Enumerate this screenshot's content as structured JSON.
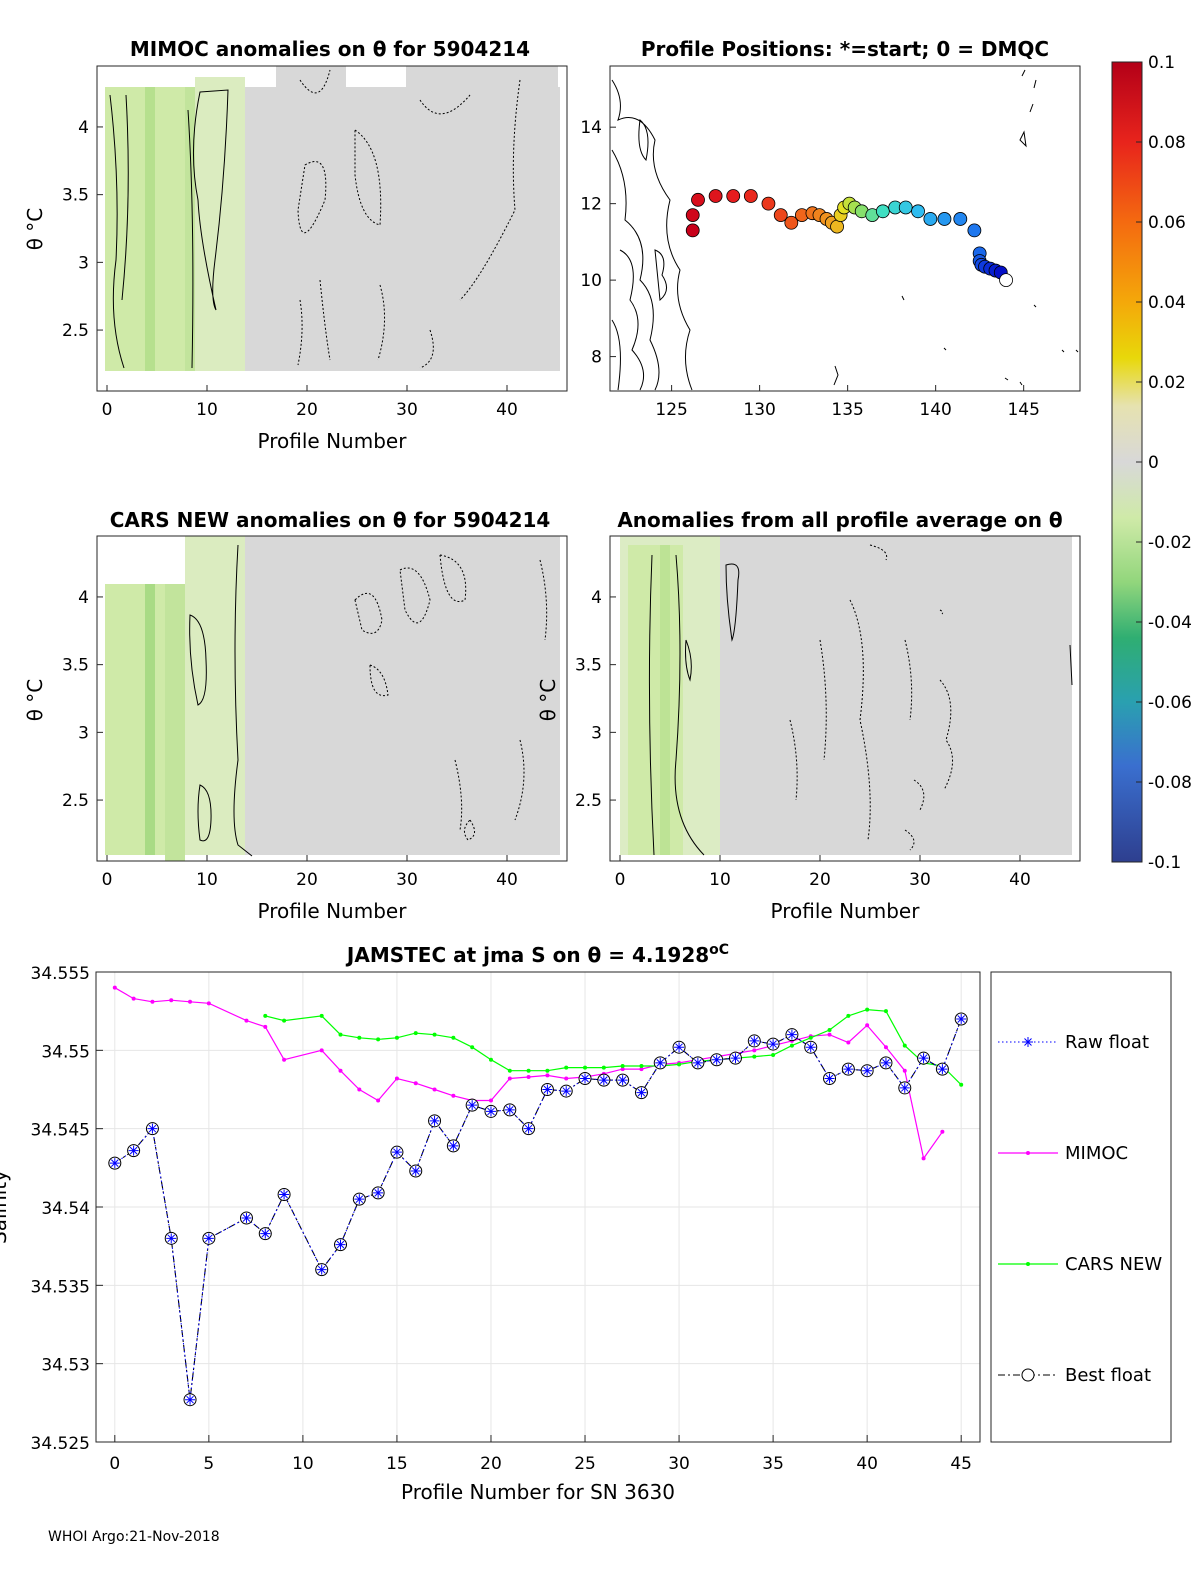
{
  "figure": {
    "footer": "WHOI Argo:21-Nov-2018",
    "colors": {
      "grid_bg": "#d8d8d8",
      "ocean_light": "#cfeaa8",
      "ocean_mid": "#b6e08e",
      "ocean_dark": "#9fd47a",
      "axis": "#262626"
    }
  },
  "panel_mimoc": {
    "title": "MIMOC anomalies on θ  for 5904214",
    "ylabel": "θ °C",
    "xlabel": "Profile Number",
    "xticks": [
      "0",
      "10",
      "20",
      "30",
      "40"
    ],
    "yticks": [
      "2.5",
      "3",
      "3.5",
      "4"
    ]
  },
  "panel_positions": {
    "title": "Profile Positions: *=start; 0 = DMQC",
    "xticks": [
      "125",
      "130",
      "135",
      "140",
      "145"
    ],
    "yticks": [
      "8",
      "10",
      "12",
      "14"
    ],
    "track": {
      "lon": [
        126.2,
        126.2,
        126.5,
        127.5,
        128.5,
        129.5,
        130.5,
        131.2,
        131.8,
        132.4,
        133.0,
        133.4,
        133.8,
        134.1,
        134.4,
        134.6,
        134.8,
        135.1,
        135.4,
        135.8,
        136.4,
        137.0,
        137.7,
        138.3,
        139.0,
        139.7,
        140.5,
        141.4,
        142.2,
        142.5,
        142.5,
        142.6,
        142.8,
        143.1,
        143.4,
        143.7,
        144.0
      ],
      "lat": [
        11.3,
        11.7,
        12.1,
        12.2,
        12.2,
        12.2,
        12.0,
        11.7,
        11.5,
        11.7,
        11.75,
        11.7,
        11.6,
        11.5,
        11.4,
        11.7,
        11.9,
        12.0,
        11.9,
        11.8,
        11.7,
        11.8,
        11.9,
        11.9,
        11.8,
        11.6,
        11.6,
        11.6,
        11.3,
        10.7,
        10.5,
        10.4,
        10.35,
        10.3,
        10.25,
        10.2,
        10.0
      ]
    }
  },
  "panel_cars": {
    "title": "CARS NEW anomalies on θ for 5904214",
    "ylabel": "θ °C",
    "xlabel": "Profile Number",
    "xticks": [
      "0",
      "10",
      "20",
      "30",
      "40"
    ],
    "yticks": [
      "2.5",
      "3",
      "3.5",
      "4"
    ]
  },
  "panel_allavg": {
    "title": "Anomalies from all profile average on θ",
    "ylabel": "θ °C",
    "xlabel": "Profile Number",
    "xticks": [
      "0",
      "10",
      "20",
      "30",
      "40"
    ],
    "yticks": [
      "2.5",
      "3",
      "3.5",
      "4"
    ]
  },
  "colorbar": {
    "ticks": [
      "0.1",
      "0.08",
      "0.06",
      "0.04",
      "0.02",
      "0",
      "-0.02",
      "-0.04",
      "-0.06",
      "-0.08",
      "-0.1"
    ]
  },
  "chart_data": {
    "type": "line",
    "title": "JAMSTEC at jma S on θ = 4.1928",
    "title_unit": "oC",
    "xlabel": "Profile Number for SN 3630",
    "ylabel": "Salinity",
    "xlim": [
      -1,
      46
    ],
    "ylim": [
      34.525,
      34.555
    ],
    "xticks": [
      0,
      5,
      10,
      15,
      20,
      25,
      30,
      35,
      40,
      45
    ],
    "yticks": [
      34.525,
      34.53,
      34.535,
      34.54,
      34.545,
      34.55,
      34.555
    ],
    "xtick_labels": [
      "0",
      "5",
      "10",
      "15",
      "20",
      "25",
      "30",
      "35",
      "40",
      "45"
    ],
    "ytick_labels": [
      "34.525",
      "34.53",
      "34.535",
      "34.54",
      "34.545",
      "34.55",
      "34.555"
    ],
    "legend": [
      "Raw float",
      "MIMOC",
      "CARS NEW",
      "Best float"
    ],
    "series": [
      {
        "name": "Raw float",
        "color": "#0000ff",
        "x": [
          0,
          1,
          2,
          3,
          4,
          5,
          7,
          8,
          9,
          11,
          12,
          13,
          14,
          15,
          16,
          17,
          18,
          19,
          20,
          21,
          22,
          23,
          24,
          25,
          26,
          27,
          28,
          29,
          30,
          31,
          32,
          33,
          34,
          35,
          36,
          37,
          38,
          39,
          40,
          41,
          42,
          43,
          44,
          45
        ],
        "y": [
          34.5428,
          34.5436,
          34.545,
          34.538,
          34.5277,
          34.538,
          34.5393,
          34.5383,
          34.5408,
          34.536,
          34.5376,
          34.5405,
          34.5409,
          34.5435,
          34.5423,
          34.5455,
          34.5439,
          34.5465,
          34.5461,
          34.5462,
          34.545,
          34.5475,
          34.5474,
          34.5482,
          34.5481,
          34.5481,
          34.5473,
          34.5492,
          34.5502,
          34.5492,
          34.5494,
          34.5495,
          34.5506,
          34.5504,
          34.551,
          34.5502,
          34.5482,
          34.5488,
          34.5487,
          34.5492,
          34.5476,
          34.5495,
          34.5488,
          34.552
        ]
      },
      {
        "name": "MIMOC",
        "color": "#ff00ff",
        "x": [
          0,
          1,
          2,
          3,
          4,
          5,
          7,
          8,
          9,
          11,
          12,
          13,
          14,
          15,
          16,
          17,
          18,
          19,
          20,
          21,
          22,
          23,
          24,
          25,
          26,
          27,
          28,
          29,
          30,
          31,
          32,
          33,
          34,
          35,
          36,
          37,
          38,
          39,
          40,
          41,
          42,
          43,
          44
        ],
        "y": [
          34.554,
          34.5533,
          34.5531,
          34.5532,
          34.5531,
          34.553,
          34.5519,
          34.5515,
          34.5494,
          34.55,
          34.5487,
          34.5475,
          34.5468,
          34.5482,
          34.5479,
          34.5475,
          34.5471,
          34.5468,
          34.5468,
          34.5482,
          34.5483,
          34.5484,
          34.5482,
          34.5483,
          34.5485,
          34.5488,
          34.5488,
          34.5491,
          34.5492,
          34.5494,
          34.5496,
          34.5498,
          34.55,
          34.5503,
          34.5506,
          34.5509,
          34.551,
          34.5505,
          34.5516,
          34.5502,
          34.5487,
          34.5431,
          34.5448
        ]
      },
      {
        "name": "CARS NEW",
        "color": "#00ff00",
        "x": [
          8,
          9,
          11,
          12,
          13,
          14,
          15,
          16,
          17,
          18,
          19,
          20,
          21,
          22,
          23,
          24,
          25,
          26,
          27,
          28,
          29,
          30,
          31,
          32,
          33,
          34,
          35,
          36,
          37,
          38,
          39,
          40,
          41,
          42,
          43,
          44,
          45
        ],
        "y": [
          34.5522,
          34.5519,
          34.5522,
          34.551,
          34.5508,
          34.5507,
          34.5508,
          34.5511,
          34.551,
          34.5508,
          34.5502,
          34.5494,
          34.5487,
          34.5487,
          34.5487,
          34.5489,
          34.5489,
          34.5489,
          34.549,
          34.549,
          34.549,
          34.5491,
          34.5493,
          34.5494,
          34.5495,
          34.5496,
          34.5497,
          34.5503,
          34.5508,
          34.5513,
          34.5522,
          34.5526,
          34.5525,
          34.5503,
          34.5492,
          34.549,
          34.5478
        ]
      },
      {
        "name": "Best float",
        "color": "#000000",
        "x": [
          0,
          1,
          2,
          3,
          4,
          5,
          7,
          8,
          9,
          11,
          12,
          13,
          14,
          15,
          16,
          17,
          18,
          19,
          20,
          21,
          22,
          23,
          24,
          25,
          26,
          27,
          28,
          29,
          30,
          31,
          32,
          33,
          34,
          35,
          36,
          37,
          38,
          39,
          40,
          41,
          42,
          43,
          44,
          45
        ],
        "y": [
          34.5428,
          34.5436,
          34.545,
          34.538,
          34.5277,
          34.538,
          34.5393,
          34.5383,
          34.5408,
          34.536,
          34.5376,
          34.5405,
          34.5409,
          34.5435,
          34.5423,
          34.5455,
          34.5439,
          34.5465,
          34.5461,
          34.5462,
          34.545,
          34.5475,
          34.5474,
          34.5482,
          34.5481,
          34.5481,
          34.5473,
          34.5492,
          34.5502,
          34.5492,
          34.5494,
          34.5495,
          34.5506,
          34.5504,
          34.551,
          34.5502,
          34.5482,
          34.5488,
          34.5487,
          34.5492,
          34.5476,
          34.5495,
          34.5488,
          34.552
        ]
      }
    ]
  }
}
